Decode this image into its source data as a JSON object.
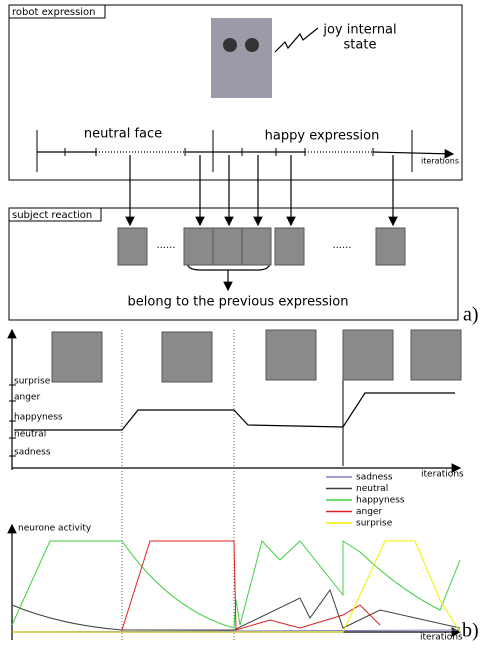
{
  "panel_a": {
    "robot_box": {
      "title": "robot expression",
      "robot_label": [
        "joy internal",
        "state"
      ],
      "phases": [
        "neutral face",
        "happy expression"
      ],
      "axis_label": "iterations"
    },
    "subject_box": {
      "title": "subject reaction",
      "ellipses": [
        "......",
        "......"
      ],
      "note": "belong to the previous expression"
    },
    "label": "a)"
  },
  "panel_b": {
    "state_levels": [
      "surprise",
      "anger",
      "happyness",
      "neutral",
      "sadness"
    ],
    "state_axis_label": "iterations",
    "legend": [
      {
        "name": "sadness",
        "color": "#8080c0"
      },
      {
        "name": "neutral",
        "color": "#404040"
      },
      {
        "name": "happyness",
        "color": "#40d040"
      },
      {
        "name": "anger",
        "color": "#e02020"
      },
      {
        "name": "surprise",
        "color": "#f0f000"
      }
    ],
    "activity_label": "neurone activity",
    "activity_axis_label": "iterations",
    "label": "b)"
  }
}
